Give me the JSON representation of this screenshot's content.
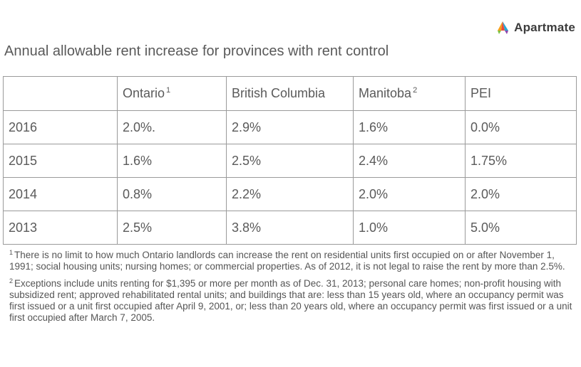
{
  "logo": {
    "text": "Apartmate",
    "icon": "apartmate-logo-icon"
  },
  "title": "Annual allowable rent increase for provinces with rent control",
  "chart_data": {
    "type": "table",
    "columns": [
      {
        "label": "",
        "sup": ""
      },
      {
        "label": "Ontario",
        "sup": "1"
      },
      {
        "label": "British Columbia",
        "sup": ""
      },
      {
        "label": "Manitoba",
        "sup": "2"
      },
      {
        "label": "PEI",
        "sup": ""
      }
    ],
    "rows": [
      [
        "2016",
        "2.0%.",
        "2.9%",
        "1.6%",
        "0.0%"
      ],
      [
        "2015",
        "1.6%",
        "2.5%",
        "2.4%",
        "1.75%"
      ],
      [
        "2014",
        "0.8%",
        "2.2%",
        "2.0%",
        "2.0%"
      ],
      [
        "2013",
        "2.5%",
        "3.8%",
        "1.0%",
        "5.0%"
      ]
    ]
  },
  "footnotes": [
    {
      "marker": "1",
      "text": "There is no limit to how much Ontario landlords can increase the rent on residential units first occupied on or after November 1, 1991; social housing units; nursing homes; or commercial properties. As of 2012, it is not legal to raise the rent by more than 2.5%."
    },
    {
      "marker": "2",
      "text": "Exceptions include units renting for $1,395 or more per month as of Dec. 31, 2013; personal care homes; non-profit housing with subsidized rent; approved rehabilitated rental units; and buildings that are: less than 15 years old, where an occupancy permit was first issued or a unit first occupied after April 9, 2001, or; less than 20 years old, where an occupancy permit was first issued or a unit first occupied after March 7, 2005."
    }
  ]
}
